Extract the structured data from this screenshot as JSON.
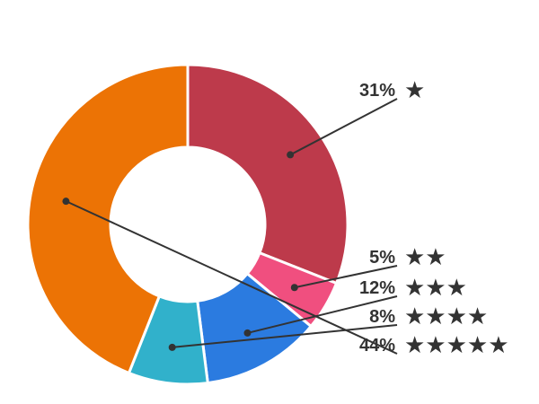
{
  "chart_data": {
    "type": "pie",
    "donut": true,
    "start_angle_deg": 0,
    "direction": "clockwise",
    "slices": [
      {
        "label": "★",
        "value": 31,
        "value_text": "31%",
        "color": "#bd3a4b"
      },
      {
        "label": "★★",
        "value": 5,
        "value_text": "5%",
        "color": "#f04f7f"
      },
      {
        "label": "★★★",
        "value": 12,
        "value_text": "12%",
        "color": "#2b7be0"
      },
      {
        "label": "★★★★",
        "value": 8,
        "value_text": "8%",
        "color": "#31b1cb"
      },
      {
        "label": "★★★★★",
        "value": 44,
        "value_text": "44%",
        "color": "#ec7305"
      }
    ],
    "title": "",
    "legend": "none",
    "labels": "outside-right"
  }
}
